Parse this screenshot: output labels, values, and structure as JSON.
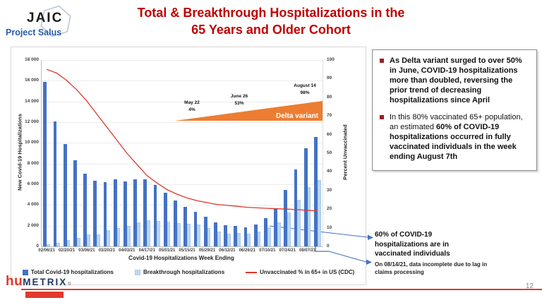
{
  "header": {
    "logo_main": "JAIC",
    "logo_sub": "Project Salus",
    "title_line1": "Total & Breakthrough Hospitalizations in the",
    "title_line2": "65 Years and Older Cohort"
  },
  "chart_data": {
    "type": "bar",
    "subtype": "grouped-bar-with-line",
    "title": "",
    "xlabel": "Covid-19 Hospitalizations Week Ending",
    "ylabel_left": "New Covid-19 Hospitalizations",
    "ylabel_right": "Percent Unvaccinated",
    "ylim_left": [
      0,
      18000
    ],
    "ylim_right": [
      0,
      100
    ],
    "grid": "horizontal",
    "legend_position": "bottom",
    "y_left_tick_labels": [
      "0",
      "2 000",
      "4 000",
      "6 000",
      "8 000",
      "10 000",
      "12 000",
      "14 000",
      "16 000",
      "18 000"
    ],
    "y_right_tick_labels": [
      "0",
      "10",
      "20",
      "30",
      "40",
      "50",
      "60",
      "70",
      "80",
      "90",
      "100"
    ],
    "x_shown_tick_every": 2,
    "categories": [
      "02/06/21",
      "02/13/21",
      "02/20/21",
      "02/27/21",
      "03/06/21",
      "03/13/21",
      "03/20/21",
      "03/27/21",
      "04/03/21",
      "04/10/21",
      "04/17/21",
      "04/24/21",
      "05/01/21",
      "05/08/21",
      "05/15/21",
      "05/22/21",
      "05/29/21",
      "06/05/21",
      "06/12/21",
      "06/19/21",
      "06/26/21",
      "07/03/21",
      "07/10/21",
      "07/17/21",
      "07/24/21",
      "07/31/21",
      "08/07/21",
      "08/14/21"
    ],
    "series": [
      {
        "name": "Total Covid-19 hospitalizations",
        "type": "bar",
        "axis": "left",
        "color": "#4472C4",
        "values": [
          15900,
          12100,
          9900,
          8300,
          7000,
          6350,
          6200,
          6450,
          6300,
          6450,
          6450,
          5900,
          5200,
          4450,
          3850,
          3350,
          2850,
          2350,
          2050,
          1950,
          1850,
          2100,
          2750,
          3650,
          5450,
          7400,
          9500,
          10600
        ]
      },
      {
        "name": "Breakthrough hospitalizations",
        "type": "bar",
        "axis": "left",
        "color": "#BDD7EE",
        "values": [
          200,
          350,
          600,
          850,
          1150,
          1150,
          1550,
          1800,
          2000,
          2300,
          2550,
          2450,
          2400,
          2250,
          2200,
          2100,
          1750,
          1400,
          1250,
          1300,
          1200,
          1400,
          1850,
          2350,
          3300,
          4500,
          5700,
          6400
        ]
      },
      {
        "name": "Unvaccinated % in 65+ in US (CDC)",
        "type": "line",
        "axis": "right",
        "color": "#E0382C",
        "values": [
          95,
          93,
          89,
          84,
          78,
          71,
          64,
          57,
          50,
          44,
          38,
          34,
          30.5,
          28,
          26,
          24.5,
          23.5,
          22.5,
          22,
          21.5,
          21,
          20.7,
          20.4,
          20.2,
          20,
          19.7,
          19.4,
          19
        ]
      }
    ],
    "annotations": {
      "delta_wedge": {
        "label": "Delta variant",
        "color": "#ED7D31",
        "points": [
          {
            "date_label": "May 22",
            "pct_label": "4%"
          },
          {
            "date_label": "June 26",
            "pct_label": "53%"
          },
          {
            "date_label": "August 14",
            "pct_label": "98%"
          }
        ]
      }
    }
  },
  "bullets": {
    "b1": "As Delta variant surged to over 50% in June, COVID-19 hospitalizations more than doubled, reversing the prior trend of decreasing hospitalizations since April",
    "b2_regular": "In this 80% vaccinated 65+ population, an estimated ",
    "b2_bold": "60% of COVID-19 hospitalizations occurred in fully vaccinated individuals in the week ending August 7th"
  },
  "callouts": {
    "sixty_pct": "60% of COVID-19 hospitalizations are in vaccinated individuals",
    "incomplete": "On 08/14/21, data incomplete due to lag in claims processing"
  },
  "footer": {
    "logo_part1": "hu",
    "logo_part2": "METRIX",
    "reg_mark": "®",
    "page_number": "12"
  }
}
